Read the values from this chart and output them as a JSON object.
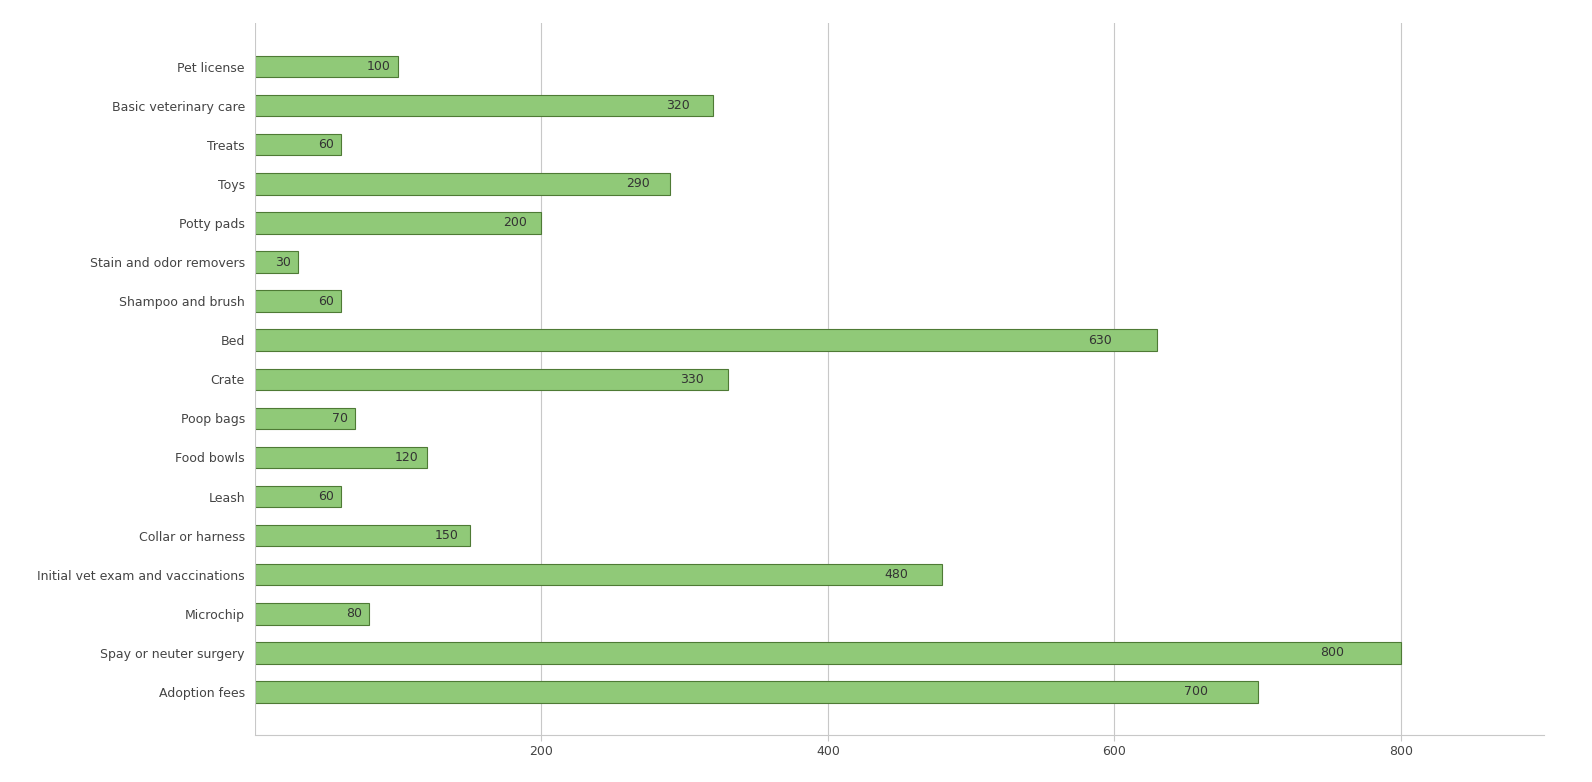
{
  "categories": [
    "Pet license",
    "Basic veterinary care",
    "Treats",
    "Toys",
    "Potty pads",
    "Stain and odor removers",
    "Shampoo and brush",
    "Bed",
    "Crate",
    "Poop bags",
    "Food bowls",
    "Leash",
    "Collar or harness",
    "Initial vet exam and vaccinations",
    "Microchip",
    "Spay or neuter surgery",
    "Adoption fees"
  ],
  "values": [
    100,
    320,
    60,
    290,
    200,
    30,
    60,
    630,
    330,
    70,
    120,
    60,
    150,
    480,
    80,
    800,
    700
  ],
  "bar_color": "#90c978",
  "bar_edge_color": "#4e7a35",
  "background_color": "#ffffff",
  "grid_color": "#c8c8c8",
  "label_fontsize": 9,
  "value_fontsize": 9,
  "xlim": [
    0,
    900
  ],
  "xtick_values": [
    200,
    400,
    600,
    800
  ],
  "bar_height": 0.55
}
